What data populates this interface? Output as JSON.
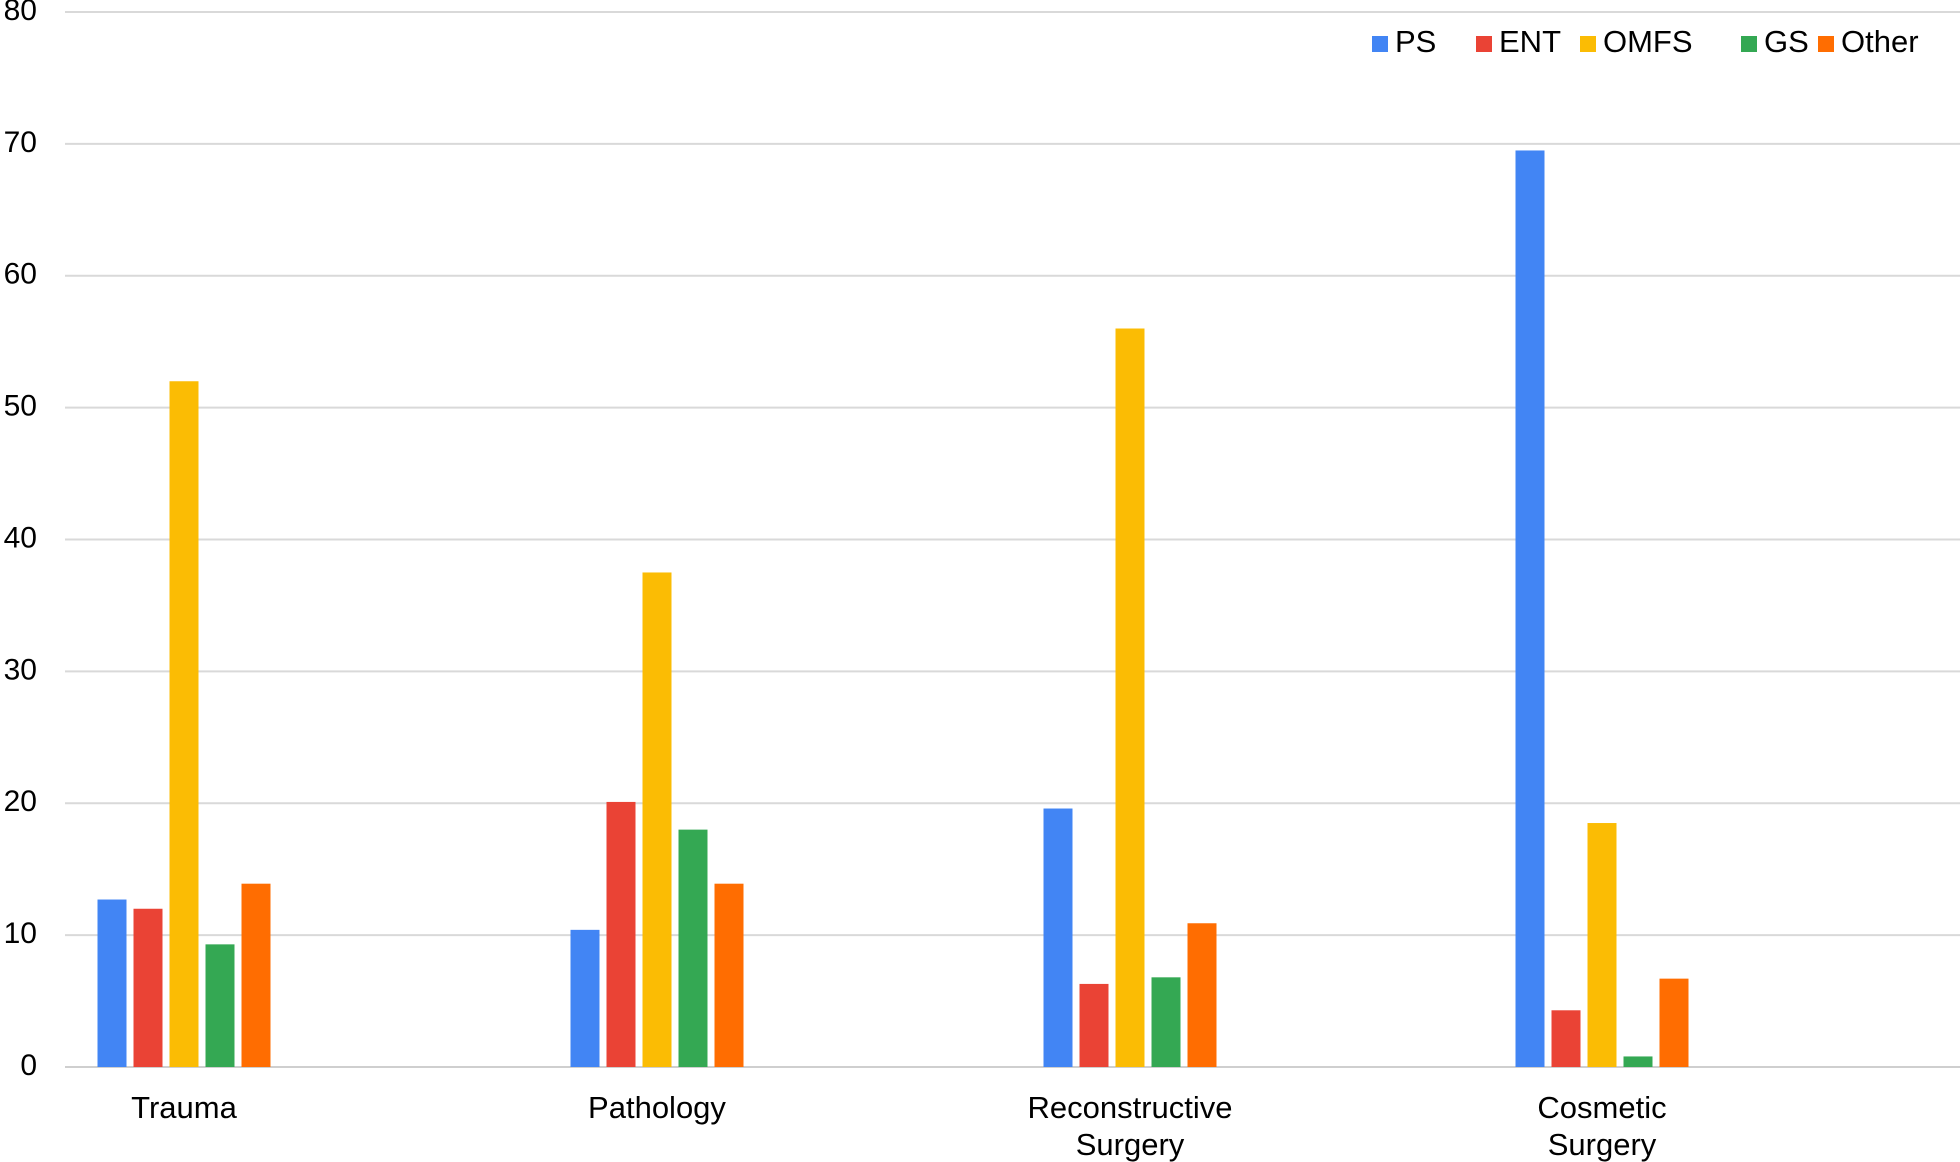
{
  "chart_data": {
    "type": "bar",
    "categories": [
      [
        "Trauma"
      ],
      [
        "Pathology"
      ],
      [
        "Reconstructive",
        "Surgery"
      ],
      [
        "Cosmetic",
        "Surgery"
      ]
    ],
    "series": [
      {
        "name": "PS",
        "color": "#4285f4",
        "values": [
          12.7,
          10.4,
          19.6,
          69.5
        ]
      },
      {
        "name": "ENT",
        "color": "#ea4335",
        "values": [
          12.0,
          20.1,
          6.3,
          4.3
        ]
      },
      {
        "name": "OMFS",
        "color": "#fbbc04",
        "values": [
          52.0,
          37.5,
          56.0,
          18.5
        ]
      },
      {
        "name": "GS",
        "color": "#34a853",
        "values": [
          9.3,
          18.0,
          6.8,
          0.8
        ]
      },
      {
        "name": "Other",
        "color": "#ff6d01",
        "values": [
          13.9,
          13.9,
          10.9,
          6.7
        ]
      }
    ],
    "ylim": [
      0,
      80
    ],
    "yticks": [
      0,
      10,
      20,
      30,
      40,
      50,
      60,
      70,
      80
    ],
    "grid": true,
    "legend_position": "top-right",
    "title": "",
    "xlabel": "",
    "ylabel": ""
  }
}
